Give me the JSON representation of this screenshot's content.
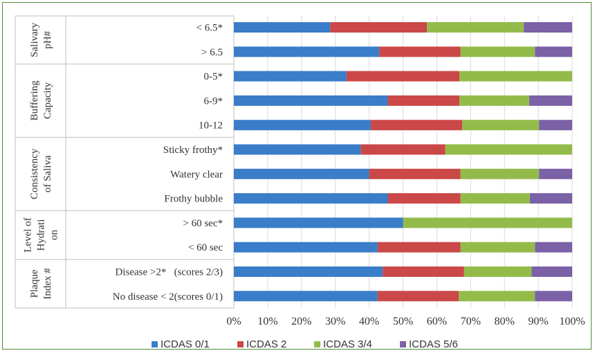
{
  "chart_data": {
    "type": "bar",
    "orientation": "horizontal",
    "stacked": true,
    "percent": true,
    "xlim": [
      0,
      100
    ],
    "x_ticks": [
      "0%",
      "10%",
      "20%",
      "30%",
      "40%",
      "50%",
      "60%",
      "70%",
      "80%",
      "90%",
      "100%"
    ],
    "categories": [
      "< 6.5*",
      "> 6.5",
      "0-5*",
      "6-9*",
      "10-12",
      "Sticky frothy*",
      "Watery clear",
      "Frothy bubble",
      "> 60 sec*",
      "< 60 sec",
      "Disease >2*   (scores 2/3)",
      "No disease < 2(scores 0/1)"
    ],
    "groups": [
      {
        "label": [
          "Salivary",
          "pH#"
        ],
        "count": 2
      },
      {
        "label": [
          "Buffering",
          "Capacity"
        ],
        "count": 3
      },
      {
        "label": [
          "Consistency",
          "of Saliva"
        ],
        "count": 3
      },
      {
        "label": [
          "Level of",
          "Hydrati",
          "on"
        ],
        "count": 2
      },
      {
        "label": [
          "Plaque",
          "Index #"
        ],
        "count": 2
      }
    ],
    "series": [
      {
        "name": "ICDAS 0/1",
        "color": "#3a7dc9",
        "values": [
          28.5,
          43.0,
          33.3,
          45.5,
          40.5,
          37.5,
          40.0,
          45.5,
          50.0,
          42.5,
          44.0,
          42.5
        ]
      },
      {
        "name": "ICDAS 2",
        "color": "#cb4848",
        "values": [
          28.6,
          24.0,
          33.4,
          21.2,
          27.0,
          25.0,
          27.0,
          21.5,
          0.0,
          24.5,
          24.0,
          24.0
        ]
      },
      {
        "name": "ICDAS 3/4",
        "color": "#93bb4a",
        "values": [
          28.6,
          22.0,
          33.3,
          20.6,
          22.7,
          37.5,
          23.2,
          20.5,
          50.0,
          22.0,
          20.0,
          22.5
        ]
      },
      {
        "name": "ICDAS 5/6",
        "color": "#7b61a6",
        "values": [
          14.3,
          11.0,
          0.0,
          12.7,
          9.8,
          0.0,
          9.8,
          12.5,
          0.0,
          11.0,
          12.0,
          11.0
        ]
      }
    ],
    "legend_position": "bottom",
    "grid": true
  }
}
